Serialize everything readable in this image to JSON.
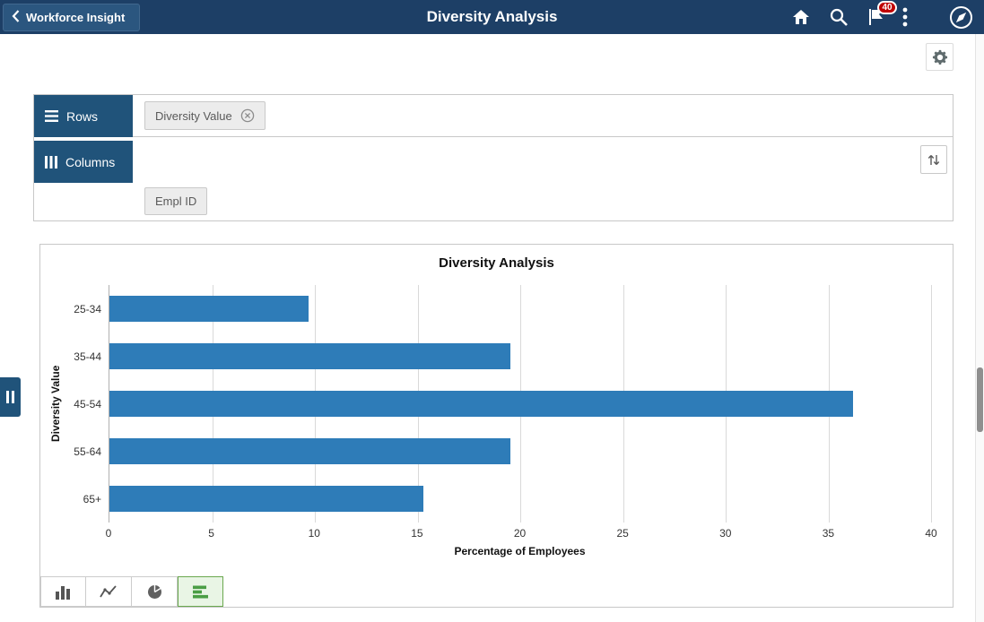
{
  "header": {
    "back_label": "Workforce Insight",
    "title": "Diversity Analysis",
    "notification_count": "40"
  },
  "pivot": {
    "rows_label": "Rows",
    "columns_label": "Columns",
    "row_chips": [
      {
        "label": "Diversity Value"
      }
    ],
    "column_chips": [
      {
        "label": "Empl ID"
      }
    ]
  },
  "chart_data": {
    "type": "bar",
    "orientation": "horizontal",
    "title": "Diversity Analysis",
    "categories": [
      "25-34",
      "35-44",
      "45-54",
      "55-64",
      "65+"
    ],
    "values": [
      9.7,
      19.5,
      36.2,
      19.5,
      15.3
    ],
    "xlabel": "Percentage of Employees",
    "ylabel": "Diversity Value",
    "xlim": [
      0,
      40
    ],
    "xticks": [
      0,
      5,
      10,
      15,
      20,
      25,
      30,
      35,
      40
    ],
    "grid": true,
    "legend": false,
    "bar_color": "#2e7cb8"
  },
  "chart_toolbar": {
    "types": [
      "vertical-bar",
      "line",
      "pie",
      "horizontal-bar"
    ],
    "selected": "horizontal-bar"
  },
  "colors": {
    "header_bg": "#1d3f66",
    "pivot_tab_bg": "#20537a",
    "badge_bg": "#c00000",
    "selected_type_bg": "#e9f5e5",
    "selected_type_border": "#6aa84f"
  }
}
